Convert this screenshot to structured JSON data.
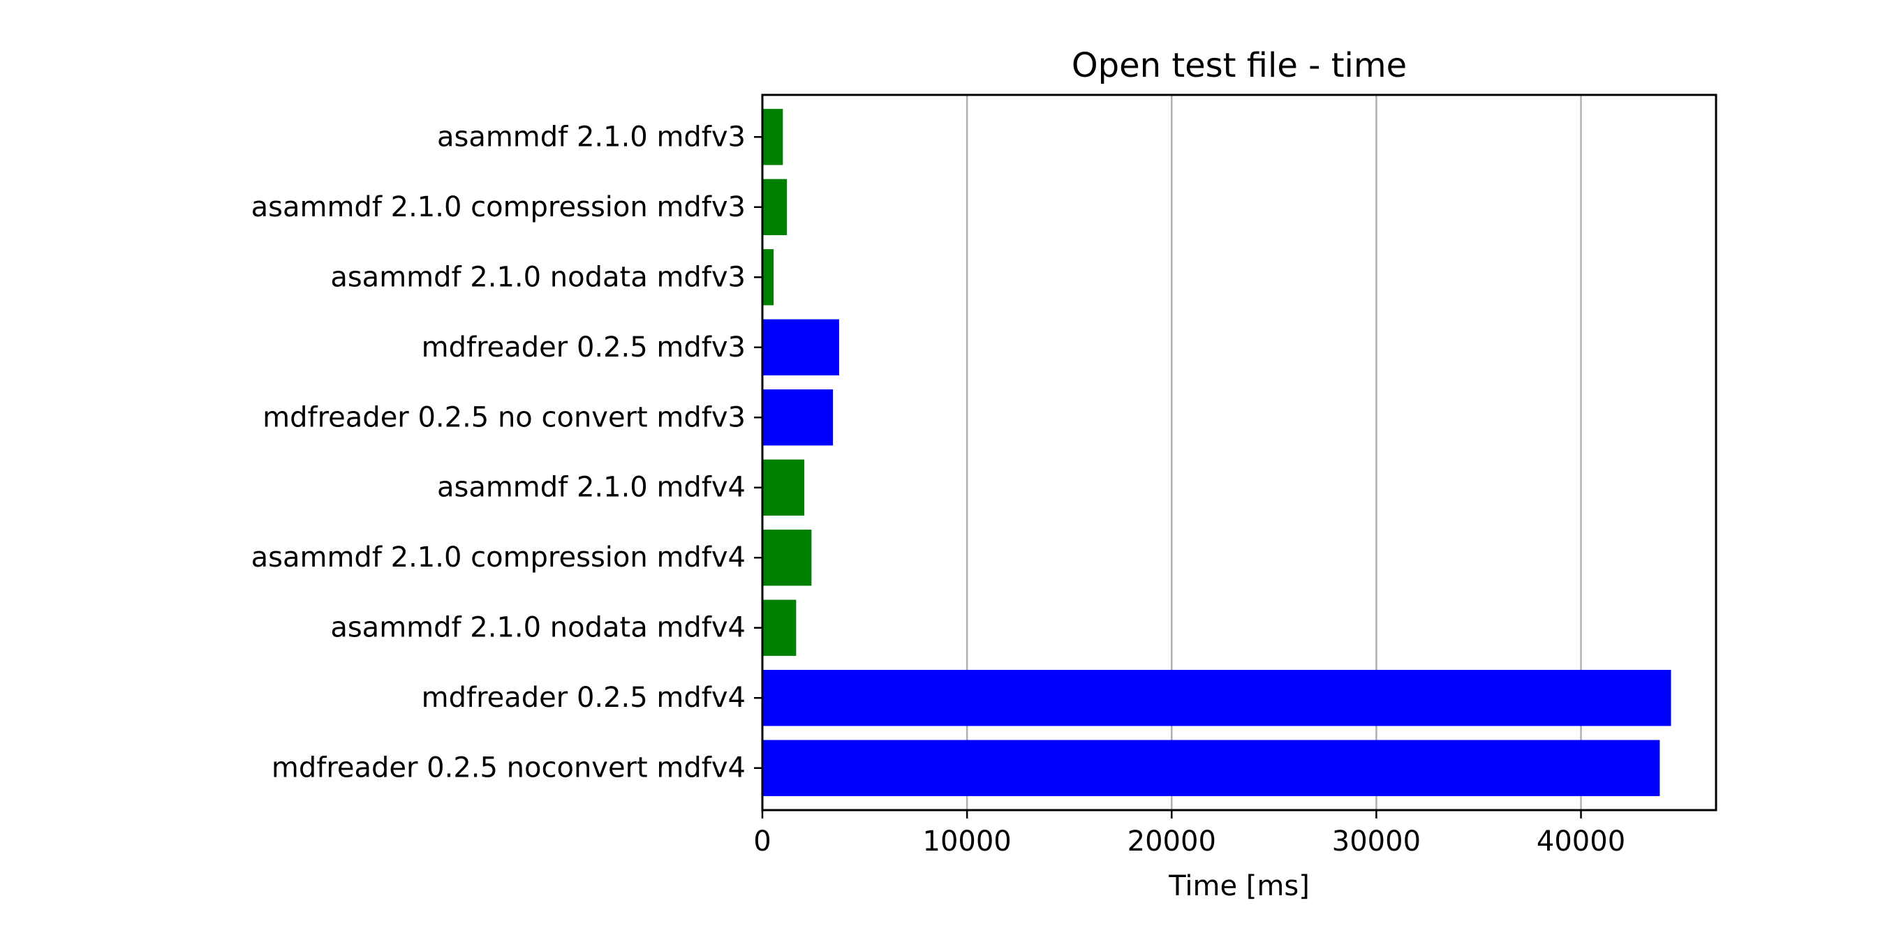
{
  "chart_data": {
    "type": "bar",
    "orientation": "horizontal",
    "title": "Open test file - time",
    "xlabel": "Time [ms]",
    "ylabel": "",
    "xlim": [
      0,
      46600
    ],
    "xticks": [
      0,
      10000,
      20000,
      30000,
      40000
    ],
    "grid": "x",
    "legend": "none",
    "categories": [
      "asammdf 2.1.0 mdfv3",
      "asammdf 2.1.0 compression mdfv3",
      "asammdf 2.1.0 nodata mdfv3",
      "mdfreader 0.2.5 mdfv3",
      "mdfreader 0.2.5 no convert mdfv3",
      "asammdf 2.1.0 mdfv4",
      "asammdf 2.1.0 compression mdfv4",
      "asammdf 2.1.0 nodata mdfv4",
      "mdfreader 0.2.5 mdfv4",
      "mdfreader 0.2.5 noconvert mdfv4"
    ],
    "values": [
      1000,
      1200,
      550,
      3750,
      3450,
      2050,
      2400,
      1650,
      44400,
      43850
    ],
    "colors": [
      "#008000",
      "#008000",
      "#008000",
      "#0000ff",
      "#0000ff",
      "#008000",
      "#008000",
      "#008000",
      "#0000ff",
      "#0000ff"
    ]
  }
}
